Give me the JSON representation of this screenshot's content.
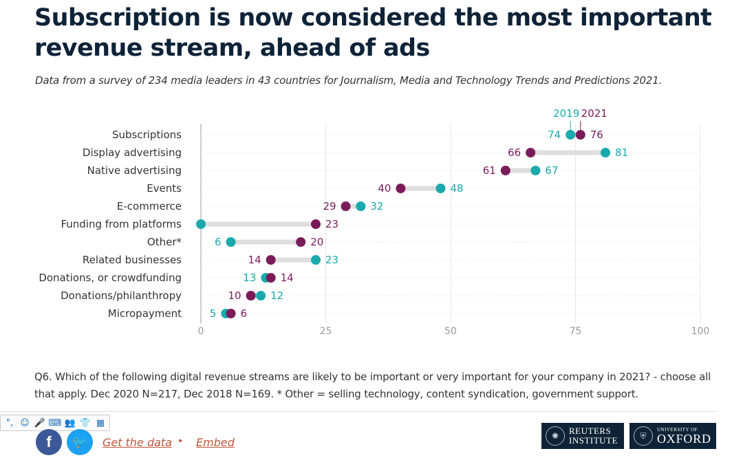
{
  "header": {
    "title": "Subscription is now considered the most important revenue stream, ahead of ads",
    "subtitle": "Data from a survey of 234 media leaders in 43 countries for Journalism, Media and Technology Trends and Predictions 2021."
  },
  "chart_data": {
    "type": "dumbbell",
    "categories": [
      "Subscriptions",
      "Display advertising",
      "Native advertising",
      "Events",
      "E-commerce",
      "Funding from platforms",
      "Other*",
      "Related businesses",
      "Donations, or crowdfunding",
      "Donations/philanthropy",
      "Micropayment"
    ],
    "series": [
      {
        "name": "2019",
        "color": "#1aa9ac",
        "values": [
          74,
          81,
          67,
          48,
          32,
          0,
          6,
          23,
          13,
          12,
          5
        ]
      },
      {
        "name": "2021",
        "color": "#7b1c5a",
        "values": [
          76,
          66,
          61,
          40,
          29,
          23,
          20,
          14,
          14,
          10,
          6
        ]
      }
    ],
    "data_labels": {
      "2019": [
        "74",
        "81",
        "67",
        "48",
        "32",
        "",
        "6",
        "23",
        "13",
        "12",
        "5"
      ],
      "2021": [
        "76",
        "66",
        "61",
        "40",
        "29",
        "23",
        "20",
        "14",
        "14",
        "10",
        "6"
      ]
    },
    "xlim": [
      0,
      100
    ],
    "xticks": [
      0,
      25,
      50,
      75,
      100
    ],
    "legend_position": "top",
    "grid": true
  },
  "footer": {
    "note": "Q6. Which of the following digital revenue streams are likely to be important or very important for your company in 2021? - choose all that apply. Dec 2020 N=217, Dec 2018 N=169. * Other = selling technology, content syndication, government support.",
    "get_data": "Get the data",
    "separator": "•",
    "embed": "Embed",
    "reuters_line1": "REUTERS",
    "reuters_line2": "INSTITUTE",
    "oxford_small": "UNIVERSITY OF",
    "oxford_big": "OXFORD",
    "facebook_glyph": "f",
    "twitter_glyph": "🐦"
  },
  "toolbar": {
    "icons": [
      "°,",
      "☺",
      "🎤",
      "⌨",
      "👥",
      "👕",
      "▦"
    ]
  }
}
